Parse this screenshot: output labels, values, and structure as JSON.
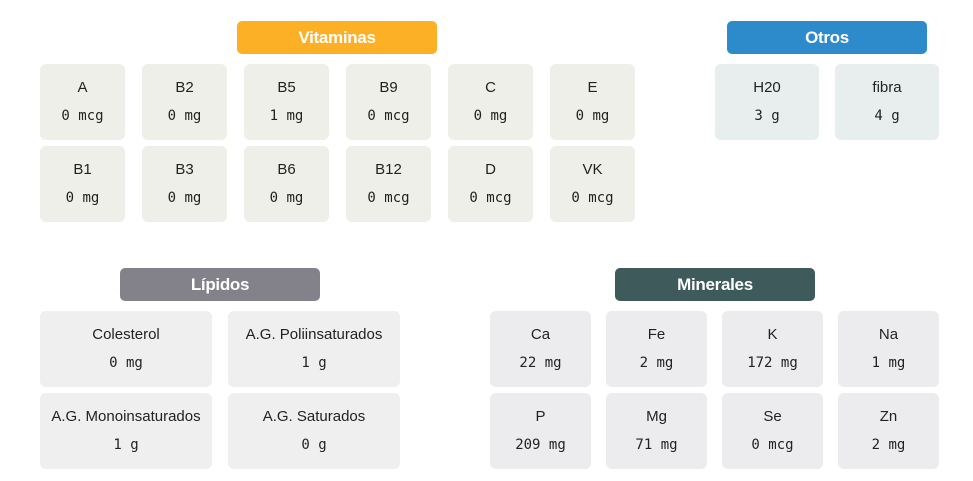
{
  "colors": {
    "vitaminas": "#fbb025",
    "otros": "#2e8bcb",
    "lipidos": "#83828a",
    "minerales": "#3f5a5a"
  },
  "vitaminas": {
    "title": "Vitaminas",
    "items": [
      {
        "name": "A",
        "value": "0 mcg"
      },
      {
        "name": "B2",
        "value": "0 mg"
      },
      {
        "name": "B5",
        "value": "1 mg"
      },
      {
        "name": "B9",
        "value": "0 mcg"
      },
      {
        "name": "C",
        "value": "0 mg"
      },
      {
        "name": "E",
        "value": "0 mg"
      },
      {
        "name": "B1",
        "value": "0 mg"
      },
      {
        "name": "B3",
        "value": "0 mg"
      },
      {
        "name": "B6",
        "value": "0 mg"
      },
      {
        "name": "B12",
        "value": "0 mcg"
      },
      {
        "name": "D",
        "value": "0 mcg"
      },
      {
        "name": "VK",
        "value": "0 mcg"
      }
    ]
  },
  "otros": {
    "title": "Otros",
    "items": [
      {
        "name": "H20",
        "value": "3 g"
      },
      {
        "name": "fibra",
        "value": "4 g"
      }
    ]
  },
  "lipidos": {
    "title": "Lípidos",
    "items": [
      {
        "name": "Colesterol",
        "value": "0 mg"
      },
      {
        "name": "A.G. Poliinsaturados",
        "value": "1 g"
      },
      {
        "name": "A.G. Monoinsaturados",
        "value": "1 g"
      },
      {
        "name": "A.G. Saturados",
        "value": "0 g"
      }
    ]
  },
  "minerales": {
    "title": "Minerales",
    "items": [
      {
        "name": "Ca",
        "value": "22 mg"
      },
      {
        "name": "Fe",
        "value": "2 mg"
      },
      {
        "name": "K",
        "value": "172 mg"
      },
      {
        "name": "Na",
        "value": "1 mg"
      },
      {
        "name": "P",
        "value": "209 mg"
      },
      {
        "name": "Mg",
        "value": "71 mg"
      },
      {
        "name": "Se",
        "value": "0 mcg"
      },
      {
        "name": "Zn",
        "value": "2 mg"
      }
    ]
  }
}
